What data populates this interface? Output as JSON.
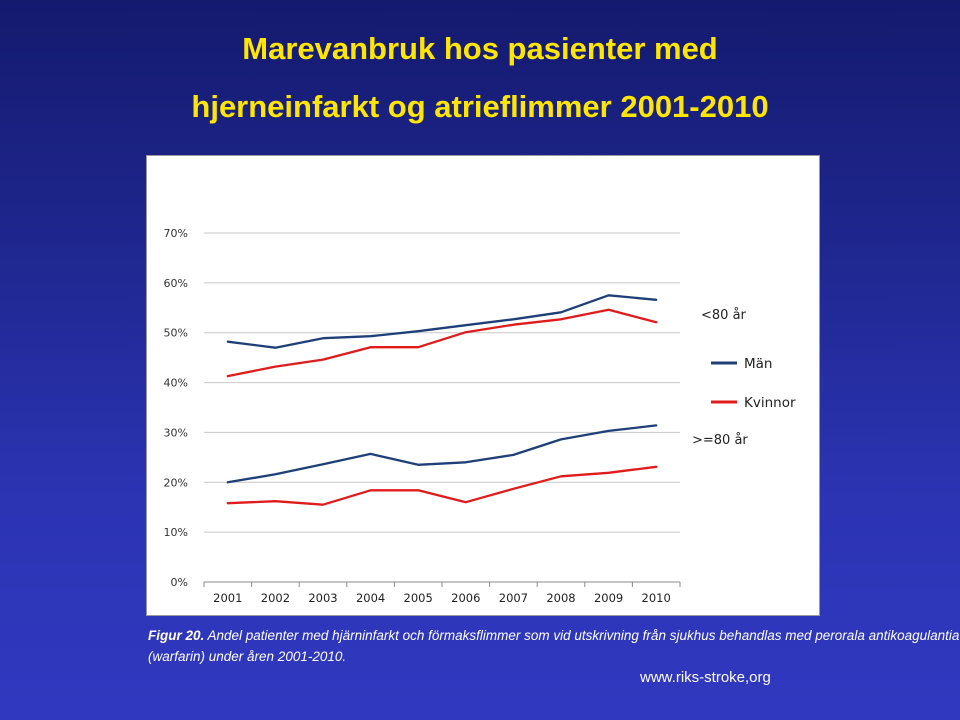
{
  "slide": {
    "title_line1": "Marevanbruk hos pasienter med",
    "title_line2": "hjerneinfarkt og atrieflimmer  2001-2010",
    "caption_label": "Figur 20.",
    "caption_text": " Andel patienter med hjärninfarkt och förmaksflimmer som vid utskrivning från sjukhus behandlas med perorala antikoagulantia (warfarin) under åren 2001-2010.",
    "source": "www.riks-stroke,org"
  },
  "colors": {
    "background_top": "#141a6e",
    "background_bottom": "#3038c0",
    "title": "#ffe600",
    "man": "#1f3f78",
    "kvinnor": "#e01b1b",
    "grid": "#c8c8c8"
  },
  "chart_data": {
    "type": "line",
    "x": [
      "2001",
      "2002",
      "2003",
      "2004",
      "2005",
      "2006",
      "2007",
      "2008",
      "2009",
      "2010"
    ],
    "ylim": [
      0,
      70
    ],
    "yticks": [
      "0%",
      "10%",
      "20%",
      "30%",
      "40%",
      "50%",
      "60%",
      "70%"
    ],
    "grid": true,
    "legend_position": "right",
    "legend": [
      "Män",
      "Kvinnor"
    ],
    "annotations": [
      "<80 år",
      ">=80 år"
    ],
    "series": [
      {
        "name": "Män",
        "group": "<80 år",
        "color": "#1f3f78",
        "values": [
          48.2,
          47.0,
          48.9,
          49.3,
          50.3,
          51.5,
          52.7,
          54.1,
          57.5,
          56.6
        ]
      },
      {
        "name": "Kvinnor",
        "group": "<80 år",
        "color": "#e01b1b",
        "values": [
          41.3,
          43.2,
          44.6,
          47.1,
          47.1,
          50.1,
          51.6,
          52.7,
          54.6,
          52.1
        ]
      },
      {
        "name": "Män",
        "group": ">=80 år",
        "color": "#1f3f78",
        "values": [
          20.0,
          21.6,
          23.6,
          25.7,
          23.5,
          24.0,
          25.5,
          28.6,
          30.3,
          31.4
        ]
      },
      {
        "name": "Kvinnor",
        "group": ">=80 år",
        "color": "#e01b1b",
        "values": [
          15.8,
          16.2,
          15.5,
          18.4,
          18.4,
          16.0,
          18.7,
          21.2,
          21.9,
          23.1
        ]
      }
    ]
  }
}
